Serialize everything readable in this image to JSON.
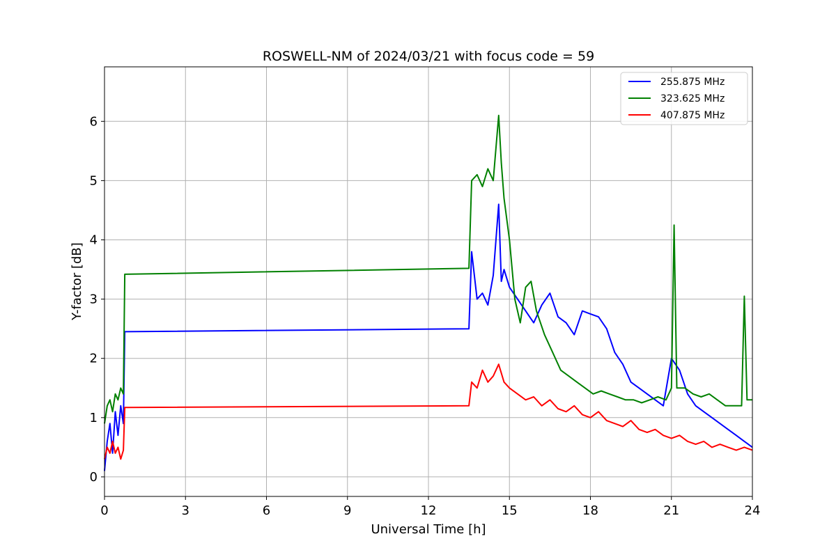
{
  "chart_data": {
    "type": "line",
    "title": "ROSWELL-NM of 2024/03/21 with focus code = 59",
    "xlabel": "Universal Time [h]",
    "ylabel": "Y-factor [dB]",
    "xlim": [
      0,
      24
    ],
    "ylim": [
      -0.33,
      6.92
    ],
    "xticks": [
      0,
      3,
      6,
      9,
      12,
      15,
      18,
      21,
      24
    ],
    "yticks": [
      0,
      1,
      2,
      3,
      4,
      5,
      6
    ],
    "xtick_labels": [
      "0",
      "3",
      "6",
      "9",
      "12",
      "15",
      "18",
      "21",
      "24"
    ],
    "ytick_labels": [
      "0",
      "1",
      "2",
      "3",
      "4",
      "5",
      "6"
    ],
    "grid": true,
    "legend_position": "top-right",
    "series": [
      {
        "name": "255.875 MHz",
        "color": "#0000ff",
        "x": [
          0.0,
          0.1,
          0.2,
          0.3,
          0.4,
          0.5,
          0.6,
          0.7,
          0.75,
          13.5,
          13.6,
          13.8,
          14.0,
          14.2,
          14.4,
          14.6,
          14.7,
          14.8,
          15.0,
          15.3,
          15.6,
          15.9,
          16.2,
          16.5,
          16.8,
          17.1,
          17.4,
          17.7,
          18.0,
          18.3,
          18.6,
          18.9,
          19.2,
          19.5,
          19.8,
          20.1,
          20.4,
          20.7,
          21.0,
          21.3,
          21.6,
          21.9,
          22.2,
          22.5,
          22.8,
          23.1,
          23.4,
          23.7,
          24.0
        ],
        "y": [
          0.1,
          0.6,
          0.9,
          0.4,
          1.1,
          0.7,
          1.2,
          0.9,
          2.45,
          2.5,
          3.8,
          3.0,
          3.1,
          2.9,
          3.4,
          4.6,
          3.3,
          3.5,
          3.2,
          3.0,
          2.8,
          2.6,
          2.9,
          3.1,
          2.7,
          2.6,
          2.4,
          2.8,
          2.75,
          2.7,
          2.5,
          2.1,
          1.9,
          1.6,
          1.5,
          1.4,
          1.3,
          1.2,
          2.0,
          1.8,
          1.4,
          1.2,
          1.1,
          1.0,
          0.9,
          0.8,
          0.7,
          0.6,
          0.5
        ]
      },
      {
        "name": "323.625 MHz",
        "color": "#008000",
        "x": [
          0.0,
          0.1,
          0.2,
          0.3,
          0.4,
          0.5,
          0.6,
          0.7,
          0.75,
          13.5,
          13.6,
          13.8,
          14.0,
          14.2,
          14.4,
          14.6,
          14.7,
          14.8,
          15.0,
          15.2,
          15.4,
          15.6,
          15.8,
          16.0,
          16.3,
          16.6,
          16.9,
          17.2,
          17.5,
          17.8,
          18.1,
          18.4,
          18.7,
          19.0,
          19.3,
          19.6,
          19.9,
          20.2,
          20.5,
          20.8,
          21.0,
          21.1,
          21.2,
          21.5,
          21.8,
          22.1,
          22.4,
          22.7,
          23.0,
          23.3,
          23.6,
          23.7,
          23.8,
          24.0
        ],
        "y": [
          0.9,
          1.2,
          1.3,
          1.1,
          1.4,
          1.3,
          1.5,
          1.4,
          3.42,
          3.52,
          5.0,
          5.1,
          4.9,
          5.2,
          5.0,
          6.1,
          5.3,
          4.7,
          4.0,
          3.0,
          2.6,
          3.2,
          3.3,
          2.8,
          2.4,
          2.1,
          1.8,
          1.7,
          1.6,
          1.5,
          1.4,
          1.45,
          1.4,
          1.35,
          1.3,
          1.3,
          1.25,
          1.3,
          1.35,
          1.3,
          1.5,
          4.25,
          1.5,
          1.5,
          1.4,
          1.35,
          1.4,
          1.3,
          1.2,
          1.2,
          1.2,
          3.05,
          1.3,
          1.3
        ]
      },
      {
        "name": "407.875 MHz",
        "color": "#ff0000",
        "x": [
          0.0,
          0.1,
          0.2,
          0.3,
          0.4,
          0.5,
          0.6,
          0.7,
          0.75,
          13.5,
          13.6,
          13.8,
          14.0,
          14.2,
          14.4,
          14.6,
          14.8,
          15.0,
          15.3,
          15.6,
          15.9,
          16.2,
          16.5,
          16.8,
          17.1,
          17.4,
          17.7,
          18.0,
          18.3,
          18.6,
          18.9,
          19.2,
          19.5,
          19.8,
          20.1,
          20.4,
          20.7,
          21.0,
          21.3,
          21.6,
          21.9,
          22.2,
          22.5,
          22.8,
          23.1,
          23.4,
          23.7,
          24.0
        ],
        "y": [
          0.3,
          0.5,
          0.4,
          0.6,
          0.4,
          0.5,
          0.3,
          0.45,
          1.17,
          1.2,
          1.6,
          1.5,
          1.8,
          1.6,
          1.7,
          1.9,
          1.6,
          1.5,
          1.4,
          1.3,
          1.35,
          1.2,
          1.3,
          1.15,
          1.1,
          1.2,
          1.05,
          1.0,
          1.1,
          0.95,
          0.9,
          0.85,
          0.95,
          0.8,
          0.75,
          0.8,
          0.7,
          0.65,
          0.7,
          0.6,
          0.55,
          0.6,
          0.5,
          0.55,
          0.5,
          0.45,
          0.5,
          0.45
        ]
      }
    ]
  }
}
